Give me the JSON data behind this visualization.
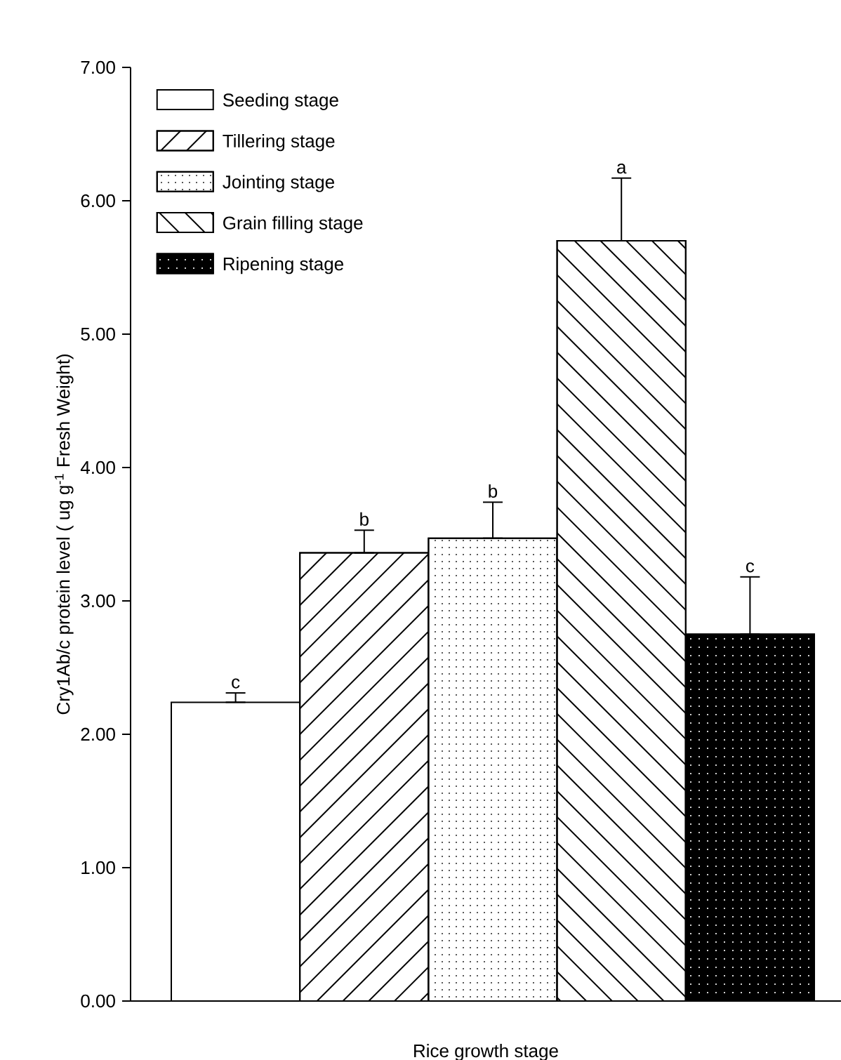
{
  "chart_data": {
    "type": "bar",
    "xlabel": "Rice growth stage",
    "ylabel": "Cry1Ab/c protein level ( ug g$^{-1}$ Fresh Weight)",
    "categories": [
      null,
      null,
      null,
      null,
      null
    ],
    "series": [
      {
        "name": "Seeding stage",
        "color": "#ffffff",
        "values": [
          2.24,
          null,
          null,
          null,
          null
        ],
        "errors": [
          [
            2.24,
            2.31
          ],
          null,
          null,
          null,
          null
        ]
      },
      {
        "name": "Tillering stage",
        "color": "#ffffff",
        "values": [
          null,
          3.36,
          null,
          null,
          null
        ],
        "errors": [
          null,
          [
            3.36,
            3.53
          ],
          null,
          null,
          null
        ]
      },
      {
        "name": "Jointing stage",
        "color": "#ffffff",
        "values": [
          null,
          null,
          3.47,
          null,
          null
        ],
        "errors": [
          null,
          null,
          [
            3.47,
            3.74
          ],
          null,
          null
        ]
      },
      {
        "name": "Grain filling stage",
        "color": "#ffffff",
        "values": [
          null,
          null,
          null,
          5.7,
          null
        ],
        "errors": [
          null,
          null,
          null,
          [
            5.7,
            6.17
          ],
          null
        ]
      },
      {
        "name": "Ripening stage",
        "color": "#000000",
        "values": [
          null,
          null,
          null,
          null,
          2.75
        ],
        "errors": [
          null,
          null,
          null,
          null,
          [
            2.75,
            3.18
          ]
        ]
      }
    ],
    "annotations": [
      {
        "text": "c",
        "y": 2.31
      },
      {
        "text": "b",
        "y": 3.53
      },
      {
        "text": "b",
        "y": 3.74
      },
      {
        "text": "a",
        "y": 6.17
      },
      {
        "text": "c",
        "y": 3.18
      }
    ],
    "ylim": [
      0,
      7
    ],
    "yticks": [
      {
        "value": 0,
        "label": "0.00"
      },
      {
        "value": 1,
        "label": "1.00"
      },
      {
        "value": 2,
        "label": "2.00"
      },
      {
        "value": 3,
        "label": "3.00"
      },
      {
        "value": 4,
        "label": "4.00"
      },
      {
        "value": 5,
        "label": "5.00"
      },
      {
        "value": 6,
        "label": "6.00"
      },
      {
        "value": 7,
        "label": "7.00"
      }
    ],
    "tick_labels": "y",
    "grid": false,
    "legend": "top left"
  }
}
